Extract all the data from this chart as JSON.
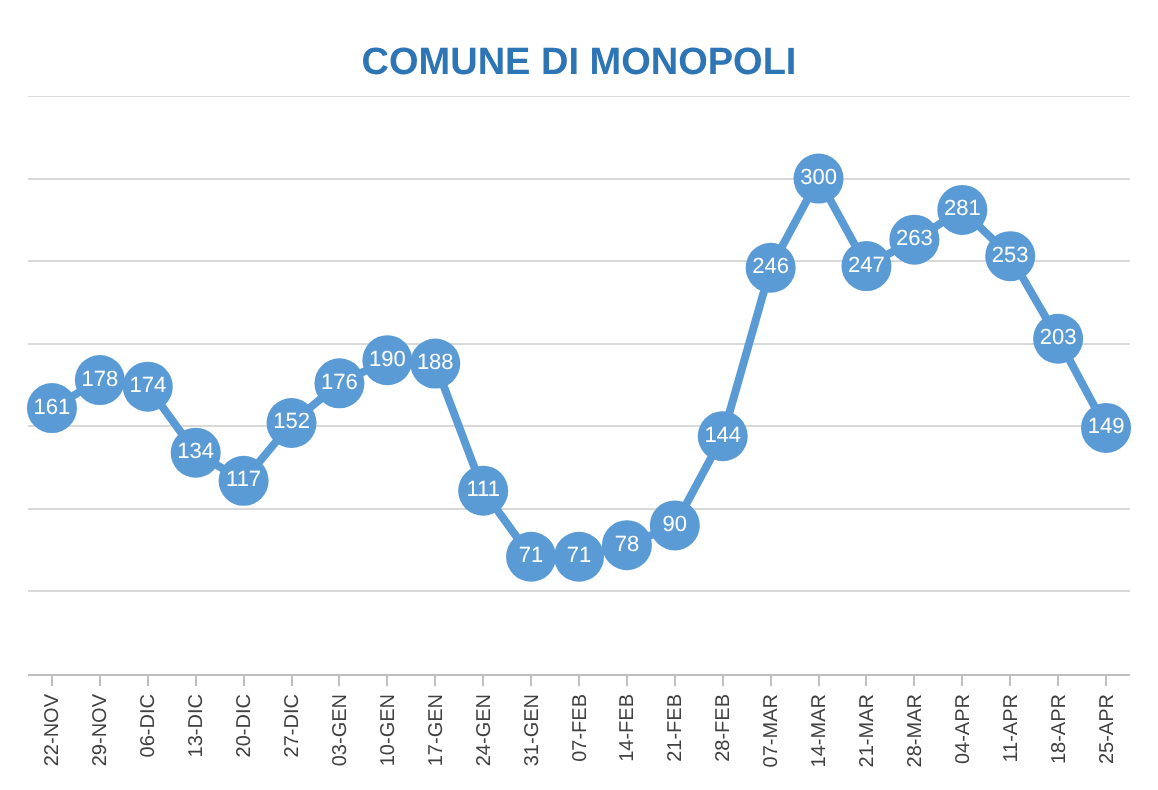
{
  "chart_data": {
    "type": "line",
    "title": "COMUNE DI MONOPOLI",
    "categories": [
      "22-NOV",
      "29-NOV",
      "06-DIC",
      "13-DIC",
      "20-DIC",
      "27-DIC",
      "03-GEN",
      "10-GEN",
      "17-GEN",
      "24-GEN",
      "31-GEN",
      "07-FEB",
      "14-FEB",
      "21-FEB",
      "28-FEB",
      "07-MAR",
      "14-MAR",
      "21-MAR",
      "28-MAR",
      "04-APR",
      "11-APR",
      "18-APR",
      "25-APR"
    ],
    "values": [
      161,
      178,
      174,
      134,
      117,
      152,
      176,
      190,
      188,
      111,
      71,
      71,
      78,
      90,
      144,
      246,
      300,
      247,
      263,
      281,
      253,
      203,
      149
    ],
    "color": "#5b9bd5",
    "ylim": [
      0,
      350
    ],
    "yticks": [
      {
        "value": 0,
        "label": null
      },
      {
        "value": 50,
        "label": null
      },
      {
        "value": 100,
        "label": null
      },
      {
        "value": 150,
        "label": null
      },
      {
        "value": 200,
        "label": null
      },
      {
        "value": 250,
        "label": null
      },
      {
        "value": 300,
        "label": null
      },
      {
        "value": 350,
        "label": null
      }
    ],
    "grid": "y",
    "data_labels": true,
    "marker": "circle",
    "line_style": "solid",
    "legend": false,
    "tick_labels": "x"
  }
}
